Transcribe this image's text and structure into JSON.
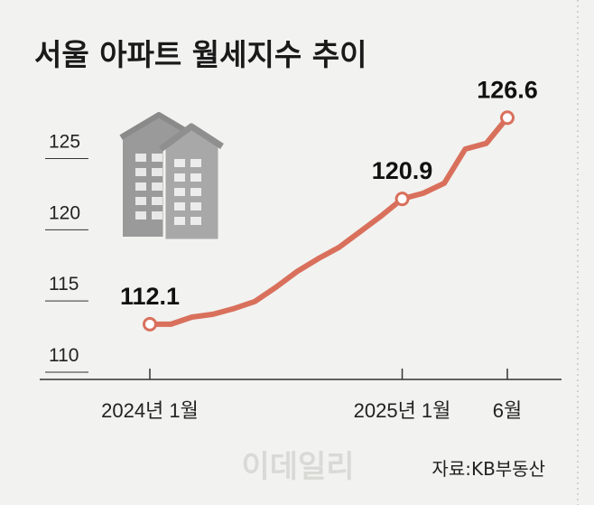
{
  "chart_data": {
    "type": "line",
    "title": "서울 아파트 월세지수 추이",
    "series": [
      {
        "name": "서울 아파트 월세지수",
        "x": [
          0,
          1,
          2,
          3,
          4,
          5,
          6,
          7,
          8,
          9,
          10,
          11,
          12,
          13,
          14,
          15,
          16,
          17
        ],
        "values": [
          112.1,
          112.1,
          112.6,
          112.8,
          113.2,
          113.7,
          114.7,
          115.8,
          116.7,
          117.5,
          118.6,
          119.7,
          120.9,
          121.3,
          122.0,
          124.4,
          124.8,
          126.6
        ]
      }
    ],
    "point_labels": [
      {
        "index": 0,
        "label": "112.1"
      },
      {
        "index": 12,
        "label": "120.9"
      },
      {
        "index": 17,
        "label": "126.6"
      }
    ],
    "x_ticks": [
      {
        "index": 0,
        "label": "2024년 1월"
      },
      {
        "index": 12,
        "label": "2025년 1월"
      },
      {
        "index": 17,
        "label": "6월"
      }
    ],
    "y_ticks": [
      110,
      115,
      120,
      125
    ],
    "ylim": [
      110,
      127
    ],
    "xlabel": "",
    "ylabel": "",
    "line_color": "#d9705c",
    "source": "자료:KB부동산",
    "watermark": "이데일리"
  }
}
